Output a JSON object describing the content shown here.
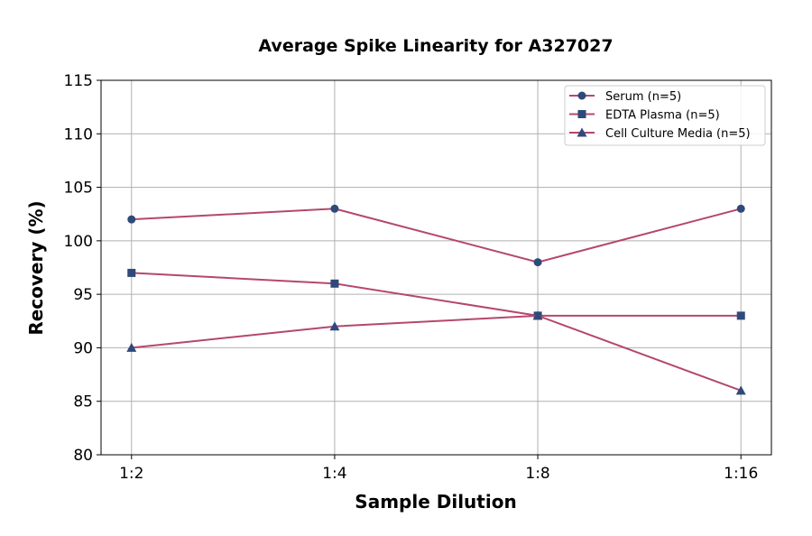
{
  "chart_data": {
    "type": "line",
    "title": "Average Spike Linearity for A327027",
    "xlabel": "Sample Dilution",
    "ylabel": "Recovery (%)",
    "categories": [
      "1:2",
      "1:4",
      "1:8",
      "1:16"
    ],
    "ylim": [
      80,
      115
    ],
    "yticks": [
      80,
      85,
      90,
      95,
      100,
      105,
      110,
      115
    ],
    "grid": true,
    "legend_position": "top-right",
    "line_color": "#b5476f",
    "marker_color": "#2e4a7a",
    "series": [
      {
        "name": "Serum (n=5)",
        "marker": "circle",
        "values": [
          102,
          103,
          98,
          103
        ]
      },
      {
        "name": "EDTA Plasma (n=5)",
        "marker": "square",
        "values": [
          97,
          96,
          93,
          93
        ]
      },
      {
        "name": "Cell Culture Media (n=5)",
        "marker": "triangle",
        "values": [
          90,
          92,
          93,
          86
        ]
      }
    ]
  }
}
